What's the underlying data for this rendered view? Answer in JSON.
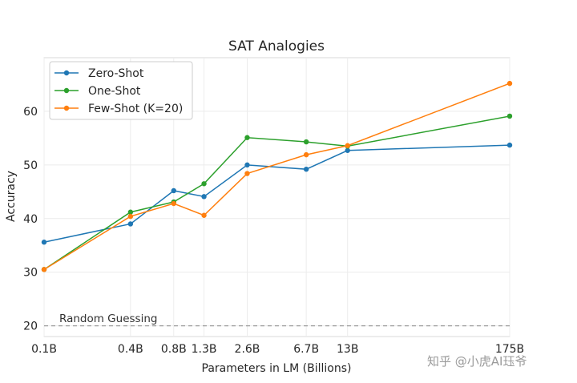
{
  "chart_data": {
    "type": "line",
    "title": "SAT Analogies",
    "xlabel": "Parameters in LM (Billions)",
    "ylabel": "Accuracy",
    "categories": [
      "0.1B",
      "0.4B",
      "0.8B",
      "1.3B",
      "2.6B",
      "6.7B",
      "13B",
      "175B"
    ],
    "x": [
      0.1,
      0.4,
      0.8,
      1.3,
      2.6,
      6.7,
      13,
      175
    ],
    "ylim": [
      18,
      70
    ],
    "yticks": [
      20,
      30,
      40,
      50,
      60
    ],
    "grid": true,
    "legend_position": "top-left",
    "series": [
      {
        "name": "Zero-Shot",
        "color": "#1f77b4",
        "values": [
          35.6,
          39.0,
          45.2,
          44.1,
          50.0,
          49.2,
          52.7,
          53.7
        ]
      },
      {
        "name": "One-Shot",
        "color": "#2ca02c",
        "values": [
          30.5,
          41.2,
          43.1,
          46.5,
          55.1,
          54.3,
          53.5,
          59.1
        ]
      },
      {
        "name": "Few-Shot (K=20)",
        "color": "#ff7f0e",
        "values": [
          30.5,
          40.4,
          42.8,
          40.6,
          48.4,
          51.9,
          53.6,
          65.2
        ]
      }
    ],
    "baseline": {
      "label": "Random Guessing",
      "value": 20
    }
  },
  "watermark": "知乎 @小虎AI珏爷"
}
